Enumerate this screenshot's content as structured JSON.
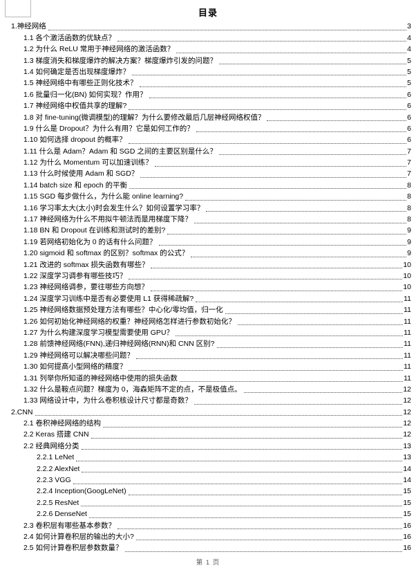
{
  "document": {
    "title": "目录",
    "footer": "第 1 页"
  },
  "colors": {
    "text": "#000000",
    "leader_dots": "#4a4a4a",
    "footer_text": "#595959",
    "margin_mark": "#b9b9b9",
    "page_background": "#ffffff"
  },
  "toc": {
    "entries": [
      {
        "level": 0,
        "text": "1.神经网络",
        "page": "3"
      },
      {
        "level": 1,
        "text": "1.1 各个激活函数的优缺点？",
        "page": "4"
      },
      {
        "level": 1,
        "text": "1.2 为什么 ReLU 常用于神经网络的激活函数？",
        "page": "4"
      },
      {
        "level": 1,
        "text": "1.3 梯度消失和梯度爆炸的解决方案？梯度爆炸引发的问题？",
        "page": "5"
      },
      {
        "level": 1,
        "text": "1.4 如何确定是否出现梯度爆炸？",
        "page": "5"
      },
      {
        "level": 1,
        "text": "1.5 神经网络中有哪些正则化技术？",
        "page": "5"
      },
      {
        "level": 1,
        "text": "1.6 批量归一化(BN) 如何实现？作用？",
        "page": "6"
      },
      {
        "level": 1,
        "text": "1.7 神经网络中权值共享的理解?",
        "page": "6"
      },
      {
        "level": 1,
        "text": "1.8 对 fine-tuning(微调模型)的理解？为什么要修改最后几层神经网络权值？",
        "page": "6"
      },
      {
        "level": 1,
        "text": "1.9 什么是 Dropout？为什么有用？它是如何工作的？",
        "page": "6"
      },
      {
        "level": 1,
        "text": "1.10 如何选择 dropout 的概率？",
        "page": "6"
      },
      {
        "level": 1,
        "text": "1.11 什么是 Adam？Adam 和 SGD 之间的主要区别是什么？",
        "page": "7"
      },
      {
        "level": 1,
        "text": "1.12 为什么 Momentum 可以加速训练？",
        "page": "7"
      },
      {
        "level": 1,
        "text": "1.13 什么时候使用 Adam 和 SGD？",
        "page": "7"
      },
      {
        "level": 1,
        "text": "1.14 batch size 和 epoch 的平衡",
        "page": "8"
      },
      {
        "level": 1,
        "text": "1.15 SGD 每步做什么，为什么能 online learning?",
        "page": "8"
      },
      {
        "level": 1,
        "text": "1.16 学习率太大(太小)时会发生什么？如何设置学习率？",
        "page": "8"
      },
      {
        "level": 1,
        "text": "1.17 神经网络为什么不用拟牛顿法而是用梯度下降？",
        "page": "8"
      },
      {
        "level": 1,
        "text": "1.18 BN 和 Dropout 在训练和测试时的差别?",
        "page": "9"
      },
      {
        "level": 1,
        "text": "1.19 若网络初始化为 0 的话有什么问题？",
        "page": "9"
      },
      {
        "level": 1,
        "text": "1.20 sigmoid 和 softmax 的区别？softmax 的公式？",
        "page": "9"
      },
      {
        "level": 1,
        "text": "1.21 改进的 softmax 损失函数有哪些？",
        "page": "10"
      },
      {
        "level": 1,
        "text": "1.22 深度学习调参有哪些技巧？",
        "page": "10"
      },
      {
        "level": 1,
        "text": "1.23 神经网络调参，要往哪些方向想？",
        "page": "10"
      },
      {
        "level": 1,
        "text": "1.24 深度学习训练中是否有必要使用 L1 获得稀疏解?",
        "page": "11"
      },
      {
        "level": 1,
        "text": "1.25 神经网络数据预处理方法有哪些？中心化/零均值，归一化",
        "page": "11"
      },
      {
        "level": 1,
        "text": "1.26 如何初始化神经网络的权重？神经网络怎样进行参数初始化？",
        "page": "11"
      },
      {
        "level": 1,
        "text": "1.27 为什么构建深度学习模型需要使用 GPU？",
        "page": "11"
      },
      {
        "level": 1,
        "text": "1.28 前馈神经网络(FNN),递归神经网络(RNN)和 CNN 区别?",
        "page": "11"
      },
      {
        "level": 1,
        "text": "1.29 神经网络可以解决哪些问题？",
        "page": "11"
      },
      {
        "level": 1,
        "text": "1.30 如何提高小型网络的精度？",
        "page": "11"
      },
      {
        "level": 1,
        "text": "1.31 列举你所知道的神经网络中使用的损失函数",
        "page": "11"
      },
      {
        "level": 1,
        "text": "1.32 什么是鞍点问题？梯度为 0，海森矩阵不定的点，不是极值点。",
        "page": "12"
      },
      {
        "level": 1,
        "text": "1.33 网络设计中，为什么卷积核设计尺寸都是奇数？",
        "page": "12"
      },
      {
        "level": 0,
        "text": "2.CNN",
        "page": "12"
      },
      {
        "level": 1,
        "text": "2.1 卷积神经网络的结构",
        "page": "12"
      },
      {
        "level": 1,
        "text": "2.2 Keras 搭建 CNN",
        "page": "12"
      },
      {
        "level": 1,
        "text": "2.2 经典网络分类",
        "page": "13"
      },
      {
        "level": 2,
        "text": "2.2.1 LeNet",
        "page": "13"
      },
      {
        "level": 2,
        "text": "2.2.2 AlexNet",
        "page": "14"
      },
      {
        "level": 2,
        "text": "2.2.3 VGG",
        "page": "14"
      },
      {
        "level": 2,
        "text": "2.2.4 Inception(GoogLeNet)",
        "page": "15"
      },
      {
        "level": 2,
        "text": "2.2.5 ResNet",
        "page": "15"
      },
      {
        "level": 2,
        "text": "2.2.6 DenseNet",
        "page": "15"
      },
      {
        "level": 1,
        "text": "2.3 卷积层有哪些基本参数？",
        "page": "16"
      },
      {
        "level": 1,
        "text": "2.4 如何计算卷积层的输出的大小?",
        "page": "16"
      },
      {
        "level": 1,
        "text": "2.5 如何计算卷积层参数数量？",
        "page": "16"
      }
    ]
  }
}
